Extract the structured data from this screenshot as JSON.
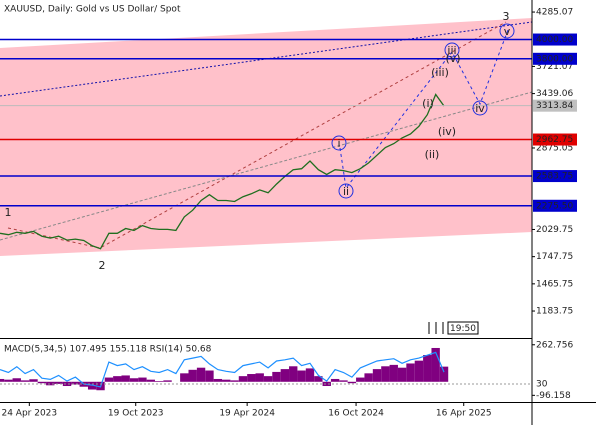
{
  "chart_data": [
    {
      "type": "line",
      "title": "XAUUSD, Daily:  Gold vs US Dollar/ Spot",
      "x": [
        0,
        2,
        4,
        6,
        8,
        10,
        12,
        14,
        16,
        18,
        20,
        22,
        24,
        26,
        28,
        30,
        32,
        34,
        36,
        38,
        40,
        42,
        44,
        46,
        48,
        50,
        52,
        54,
        56,
        58,
        60,
        62,
        64,
        66,
        68,
        70,
        72,
        74,
        76,
        78,
        80,
        82,
        84,
        86,
        88,
        90,
        92,
        94,
        96,
        98,
        100,
        102,
        104,
        106
      ],
      "series": [
        {
          "name": "XAUUSD",
          "color": "#1f6e1f",
          "values": [
            1990,
            1975,
            2000,
            1990,
            2010,
            1960,
            1940,
            1960,
            1920,
            1930,
            1915,
            1860,
            1830,
            1990,
            1990,
            2040,
            2020,
            2070,
            2040,
            2030,
            2030,
            2020,
            2160,
            2230,
            2330,
            2390,
            2330,
            2330,
            2320,
            2370,
            2400,
            2440,
            2410,
            2500,
            2580,
            2650,
            2660,
            2740,
            2650,
            2600,
            2650,
            2640,
            2620,
            2660,
            2720,
            2800,
            2880,
            2920,
            2980,
            3020,
            3100,
            3220,
            3430,
            3310
          ]
        }
      ],
      "xlim": [
        0,
        127
      ],
      "ylim": [
        904,
        4410
      ],
      "yticks": [
        4285.07,
        3721.07,
        3439.06,
        2875.05,
        2029.75,
        1747.75,
        1465.75,
        1183.75
      ],
      "levels": [
        {
          "value": 4000,
          "label": "4000.00",
          "color": "#0000cc"
        },
        {
          "value": 3800,
          "label": "3800.00",
          "color": "#0000cc"
        },
        {
          "value": 2962.75,
          "label": "2962.75",
          "color": "#e00000"
        },
        {
          "value": 2583.75,
          "label": "2583.75",
          "color": "#0000cc"
        },
        {
          "value": 2275.5,
          "label": "2275.50",
          "color": "#0000cc"
        }
      ],
      "current_price": {
        "value": 3313.84,
        "label": "3313.84"
      },
      "annotations": [
        "1",
        "2",
        "3",
        "i",
        "ii",
        "iii",
        "iv",
        "v",
        "(i)",
        "(ii)",
        "(iii)",
        "(iv)",
        "(v)"
      ],
      "time_label": "19:50"
    },
    {
      "type": "bar",
      "title": "MACD(5,34,5) 107.495 155.118 RSI(14) 50.68",
      "x": [
        0,
        2,
        4,
        6,
        8,
        10,
        12,
        14,
        16,
        18,
        20,
        22,
        24,
        26,
        28,
        30,
        32,
        34,
        36,
        38,
        40,
        42,
        44,
        46,
        48,
        50,
        52,
        54,
        56,
        58,
        60,
        62,
        64,
        66,
        68,
        70,
        72,
        74,
        76,
        78,
        80,
        82,
        84,
        86,
        88,
        90,
        92,
        94,
        96,
        98,
        100,
        102,
        104,
        106
      ],
      "series": [
        {
          "name": "MACD",
          "color": "#800080",
          "values": [
            20,
            15,
            25,
            10,
            18,
            -10,
            -25,
            -15,
            -30,
            -20,
            -35,
            -55,
            -60,
            30,
            40,
            45,
            25,
            30,
            15,
            5,
            10,
            0,
            60,
            85,
            100,
            80,
            20,
            15,
            10,
            40,
            55,
            60,
            40,
            70,
            90,
            110,
            80,
            95,
            40,
            -30,
            20,
            10,
            -10,
            30,
            60,
            90,
            110,
            120,
            100,
            130,
            150,
            190,
            240,
            107.495
          ]
        },
        {
          "name": "RSI",
          "color": "#1e90ff",
          "axis": "y2",
          "values": [
            55,
            50,
            60,
            48,
            55,
            40,
            38,
            45,
            35,
            42,
            30,
            28,
            25,
            68,
            62,
            65,
            55,
            60,
            52,
            50,
            55,
            48,
            72,
            75,
            78,
            65,
            55,
            52,
            50,
            62,
            65,
            68,
            58,
            70,
            72,
            75,
            62,
            66,
            45,
            35,
            55,
            50,
            42,
            58,
            64,
            70,
            72,
            74,
            66,
            72,
            75,
            80,
            85,
            50.68
          ]
        }
      ],
      "xlim": [
        0,
        127
      ],
      "ylim": [
        -143.5,
        296.6
      ],
      "yticks": [
        262.756,
        -96.158
      ],
      "y2lim": [
        -1.3,
        106.5
      ],
      "y2ticks": [
        30
      ],
      "xticks": [
        {
          "value": 7,
          "label": "24 Apr 2023"
        },
        {
          "value": 32.4,
          "label": "19 Oct 2023"
        },
        {
          "value": 59,
          "label": "19 Apr 2024"
        },
        {
          "value": 85,
          "label": "16 Oct 2024"
        },
        {
          "value": 110.7,
          "label": "16 Apr 2025"
        }
      ]
    }
  ]
}
